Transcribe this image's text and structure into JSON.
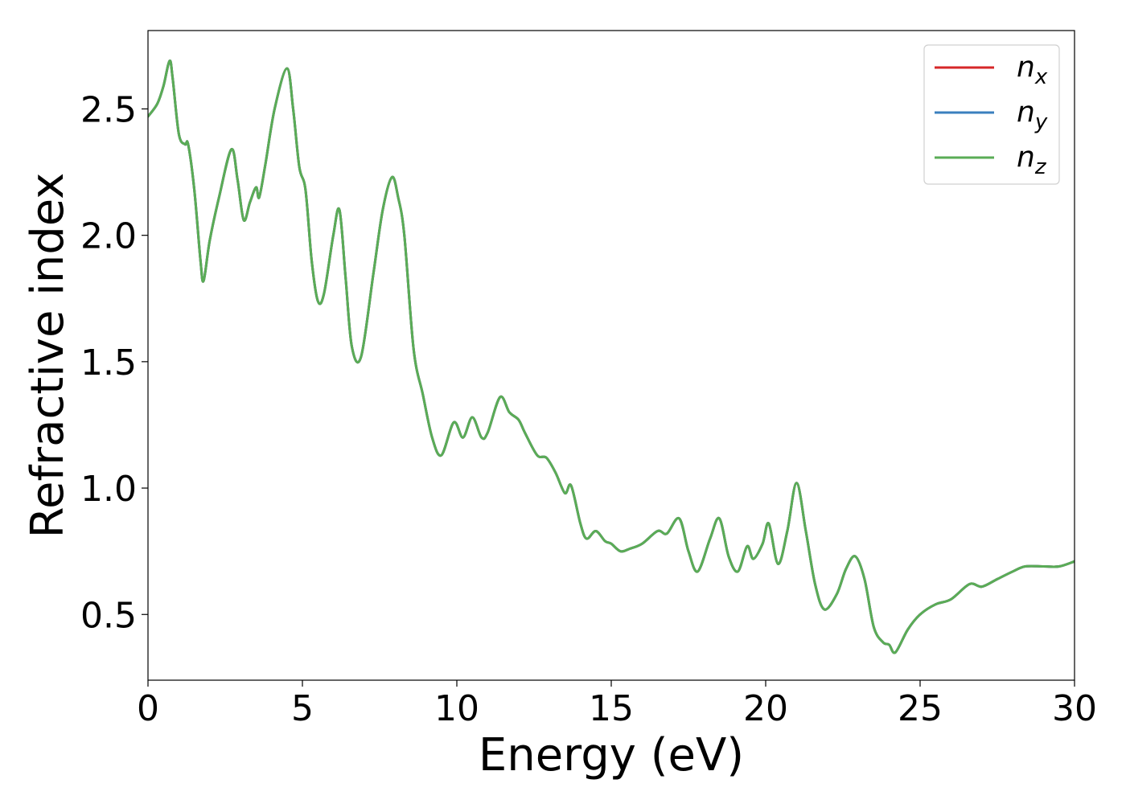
{
  "chart_data": {
    "type": "line",
    "title": "",
    "xlabel": "Energy (eV)",
    "ylabel": "Refractive index",
    "xlim": [
      0,
      30
    ],
    "ylim": [
      0.24,
      2.81
    ],
    "grid": false,
    "legend_position": "top-right",
    "x_ticks": [
      {
        "value": 0,
        "label": "0"
      },
      {
        "value": 5,
        "label": "5"
      },
      {
        "value": 10,
        "label": "10"
      },
      {
        "value": 15,
        "label": "15"
      },
      {
        "value": 20,
        "label": "20"
      },
      {
        "value": 25,
        "label": "25"
      },
      {
        "value": 30,
        "label": "30"
      }
    ],
    "y_ticks": [
      {
        "value": 0.5,
        "label": "0.5"
      },
      {
        "value": 1.0,
        "label": "1.0"
      },
      {
        "value": 1.5,
        "label": "1.5"
      },
      {
        "value": 2.0,
        "label": "2.0"
      },
      {
        "value": 2.5,
        "label": "2.5"
      }
    ],
    "x": [
      0,
      0.3,
      0.5,
      0.7,
      0.8,
      1.0,
      1.2,
      1.3,
      1.5,
      1.7,
      1.8,
      2.0,
      2.3,
      2.7,
      2.9,
      3.1,
      3.3,
      3.5,
      3.6,
      3.8,
      4.1,
      4.5,
      4.7,
      4.9,
      5.1,
      5.3,
      5.5,
      5.7,
      6.0,
      6.2,
      6.4,
      6.6,
      6.9,
      7.3,
      7.6,
      7.9,
      8.1,
      8.3,
      8.6,
      8.9,
      9.2,
      9.5,
      9.9,
      10.2,
      10.5,
      10.8,
      11.0,
      11.4,
      11.7,
      12.0,
      12.2,
      12.6,
      12.9,
      13.2,
      13.5,
      13.7,
      14.0,
      14.2,
      14.5,
      14.8,
      15.0,
      15.3,
      15.6,
      16.0,
      16.5,
      16.8,
      17.2,
      17.5,
      17.8,
      18.2,
      18.5,
      18.8,
      19.1,
      19.4,
      19.6,
      19.9,
      20.1,
      20.4,
      20.7,
      21.0,
      21.3,
      21.6,
      21.9,
      22.3,
      22.6,
      22.9,
      23.2,
      23.5,
      23.8,
      24.0,
      24.2,
      24.6,
      25.0,
      25.5,
      26.0,
      26.6,
      27.0,
      27.5,
      28.0,
      28.4,
      29.0,
      29.5,
      30.0
    ],
    "series": [
      {
        "name": "n_x",
        "label_base": "n",
        "label_sub": "x",
        "color": "#d62728",
        "values": [
          2.47,
          2.52,
          2.59,
          2.69,
          2.62,
          2.4,
          2.36,
          2.36,
          2.18,
          1.9,
          1.82,
          1.98,
          2.15,
          2.34,
          2.22,
          2.06,
          2.13,
          2.19,
          2.15,
          2.28,
          2.5,
          2.66,
          2.5,
          2.27,
          2.18,
          1.9,
          1.74,
          1.77,
          2.0,
          2.1,
          1.83,
          1.56,
          1.52,
          1.85,
          2.1,
          2.23,
          2.15,
          2.0,
          1.55,
          1.37,
          1.2,
          1.13,
          1.26,
          1.2,
          1.28,
          1.2,
          1.22,
          1.36,
          1.3,
          1.27,
          1.22,
          1.13,
          1.12,
          1.06,
          0.98,
          1.01,
          0.86,
          0.8,
          0.83,
          0.79,
          0.78,
          0.75,
          0.76,
          0.78,
          0.83,
          0.82,
          0.88,
          0.75,
          0.67,
          0.8,
          0.88,
          0.73,
          0.67,
          0.77,
          0.72,
          0.78,
          0.86,
          0.7,
          0.83,
          1.02,
          0.83,
          0.62,
          0.52,
          0.58,
          0.68,
          0.73,
          0.64,
          0.45,
          0.39,
          0.38,
          0.35,
          0.44,
          0.5,
          0.54,
          0.56,
          0.62,
          0.61,
          0.64,
          0.67,
          0.69,
          0.69,
          0.69,
          0.71
        ]
      },
      {
        "name": "n_y",
        "label_base": "n",
        "label_sub": "y",
        "color": "#3a7fbe",
        "values": [
          2.47,
          2.52,
          2.59,
          2.69,
          2.62,
          2.4,
          2.36,
          2.36,
          2.18,
          1.9,
          1.82,
          1.98,
          2.15,
          2.34,
          2.22,
          2.06,
          2.13,
          2.19,
          2.15,
          2.28,
          2.5,
          2.66,
          2.5,
          2.27,
          2.18,
          1.9,
          1.74,
          1.77,
          2.0,
          2.1,
          1.83,
          1.56,
          1.52,
          1.85,
          2.1,
          2.23,
          2.15,
          2.0,
          1.55,
          1.37,
          1.2,
          1.13,
          1.26,
          1.2,
          1.28,
          1.2,
          1.22,
          1.36,
          1.3,
          1.27,
          1.22,
          1.13,
          1.12,
          1.06,
          0.98,
          1.01,
          0.86,
          0.8,
          0.83,
          0.79,
          0.78,
          0.75,
          0.76,
          0.78,
          0.83,
          0.82,
          0.88,
          0.75,
          0.67,
          0.8,
          0.88,
          0.73,
          0.67,
          0.77,
          0.72,
          0.78,
          0.86,
          0.7,
          0.83,
          1.02,
          0.83,
          0.62,
          0.52,
          0.58,
          0.68,
          0.73,
          0.64,
          0.45,
          0.39,
          0.38,
          0.35,
          0.44,
          0.5,
          0.54,
          0.56,
          0.62,
          0.61,
          0.64,
          0.67,
          0.69,
          0.69,
          0.69,
          0.71
        ]
      },
      {
        "name": "n_z",
        "label_base": "n",
        "label_sub": "z",
        "color": "#5aac56",
        "values": [
          2.47,
          2.52,
          2.59,
          2.69,
          2.62,
          2.4,
          2.36,
          2.36,
          2.18,
          1.9,
          1.82,
          1.98,
          2.15,
          2.34,
          2.22,
          2.06,
          2.13,
          2.19,
          2.15,
          2.28,
          2.5,
          2.66,
          2.5,
          2.27,
          2.18,
          1.9,
          1.74,
          1.77,
          2.0,
          2.1,
          1.83,
          1.56,
          1.52,
          1.85,
          2.1,
          2.23,
          2.15,
          2.0,
          1.55,
          1.37,
          1.2,
          1.13,
          1.26,
          1.2,
          1.28,
          1.2,
          1.22,
          1.36,
          1.3,
          1.27,
          1.22,
          1.13,
          1.12,
          1.06,
          0.98,
          1.01,
          0.86,
          0.8,
          0.83,
          0.79,
          0.78,
          0.75,
          0.76,
          0.78,
          0.83,
          0.82,
          0.88,
          0.75,
          0.67,
          0.8,
          0.88,
          0.73,
          0.67,
          0.77,
          0.72,
          0.78,
          0.86,
          0.7,
          0.83,
          1.02,
          0.83,
          0.62,
          0.52,
          0.58,
          0.68,
          0.73,
          0.64,
          0.45,
          0.39,
          0.38,
          0.35,
          0.44,
          0.5,
          0.54,
          0.56,
          0.62,
          0.61,
          0.64,
          0.67,
          0.69,
          0.69,
          0.69,
          0.71
        ]
      }
    ]
  }
}
